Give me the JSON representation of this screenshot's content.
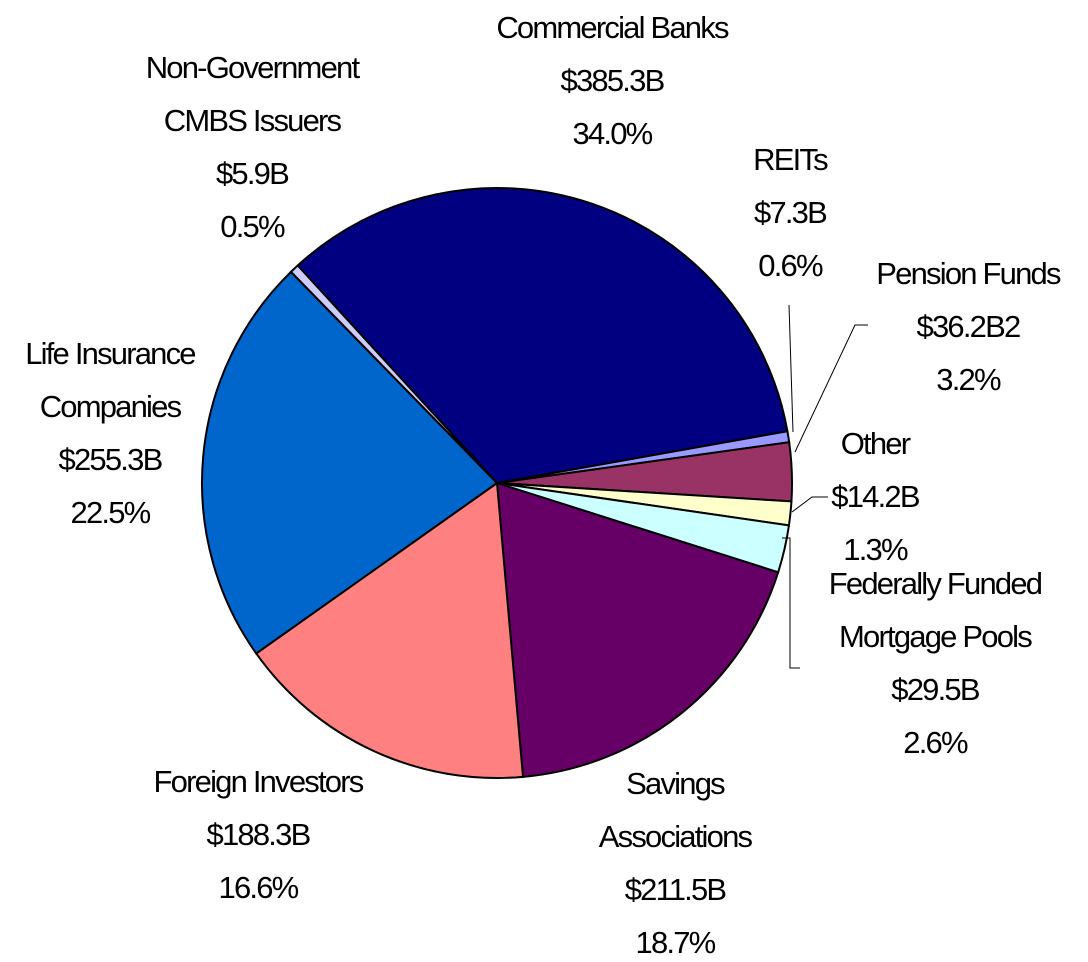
{
  "chart_data": {
    "type": "pie",
    "categories": [
      [
        "Commercial Banks"
      ],
      [
        "REITs"
      ],
      [
        "Pension Funds"
      ],
      [
        "Other"
      ],
      [
        "Federally Funded",
        "Mortgage Pools"
      ],
      [
        "Savings",
        "Associations"
      ],
      [
        "Foreign Investors"
      ],
      [
        "Life Insurance",
        "Companies"
      ],
      [
        "Non-Government",
        "CMBS Issuers"
      ]
    ],
    "values": [
      34.0,
      0.6,
      3.2,
      1.3,
      2.6,
      18.7,
      16.6,
      22.5,
      0.5
    ],
    "value_labels": [
      "34.0%",
      "0.6%",
      "3.2%",
      "1.3%",
      "2.6%",
      "18.7%",
      "16.6%",
      "22.5%",
      "0.5%"
    ],
    "amounts": [
      385.3,
      7.3,
      36.2,
      14.2,
      29.5,
      211.5,
      188.3,
      255.3,
      5.9
    ],
    "amount_labels": [
      "$385.3B",
      "$7.3B",
      "$36.2B2",
      "$14.2B",
      "$29.5B",
      "$211.5B",
      "$188.3B",
      "$255.3B",
      "$5.9B"
    ],
    "colors": [
      "#000080",
      "#9999ff",
      "#993366",
      "#ffffcc",
      "#ccffff",
      "#660066",
      "#ff8080",
      "#0066cc",
      "#ccccff"
    ]
  }
}
